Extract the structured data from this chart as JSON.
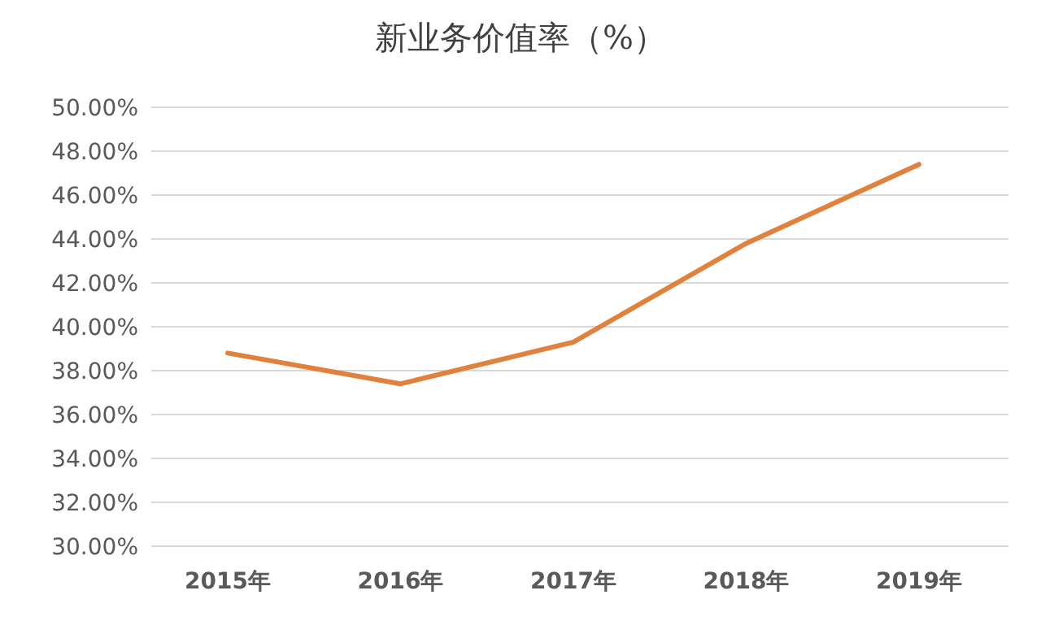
{
  "chart_data": {
    "type": "line",
    "title": "新业务价值率（%）",
    "categories": [
      "2015年",
      "2016年",
      "2017年",
      "2018年",
      "2019年"
    ],
    "series": [
      {
        "color": "#e0823d",
        "values": [
          38.8,
          37.4,
          39.3,
          43.8,
          47.4
        ]
      }
    ],
    "ylim": [
      30,
      50
    ],
    "yticks": [
      {
        "value": 30,
        "label": "30.00%"
      },
      {
        "value": 32,
        "label": "32.00%"
      },
      {
        "value": 34,
        "label": "34.00%"
      },
      {
        "value": 36,
        "label": "36.00%"
      },
      {
        "value": 38,
        "label": "38.00%"
      },
      {
        "value": 40,
        "label": "40.00%"
      },
      {
        "value": 42,
        "label": "42.00%"
      },
      {
        "value": 44,
        "label": "44.00%"
      },
      {
        "value": 46,
        "label": "46.00%"
      },
      {
        "value": 48,
        "label": "48.00%"
      },
      {
        "value": 50,
        "label": "50.00%"
      }
    ],
    "grid": "y",
    "marker": "none",
    "line_style": "solid"
  }
}
